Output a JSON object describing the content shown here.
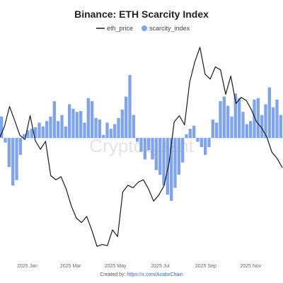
{
  "colors": {
    "price": "#1a1a1a",
    "scarcity": "#7ea3f0",
    "grid": "#eeeeee",
    "credit_link": "#3366cc"
  },
  "chart_data": {
    "type": "line",
    "title": "Binance: ETH Scarcity Index",
    "legend": {
      "placement": "top-center",
      "price_label": "eth_price",
      "scarcity_label": "scarcity_index"
    },
    "watermark": "CryptoQuant",
    "credit": {
      "prefix": "Created by: ",
      "link": "https://x.com/AzabxChain"
    },
    "x_ticks": [
      "2025 Jan",
      "2025 Mar",
      "2025 May",
      "2025 Jul",
      "2025 Sep",
      "2025 Nov"
    ],
    "x_range": [
      "2024-11-25",
      "2025-12-15"
    ],
    "grid": false,
    "series": [
      {
        "name": "eth_price",
        "kind": "line",
        "yrange": [
          1400,
          4900
        ],
        "x": [
          "2024-11-25",
          "2024-12-01",
          "2024-12-08",
          "2024-12-15",
          "2024-12-22",
          "2024-12-29",
          "2025-01-05",
          "2025-01-12",
          "2025-01-19",
          "2025-01-26",
          "2025-02-02",
          "2025-02-09",
          "2025-02-16",
          "2025-02-23",
          "2025-03-02",
          "2025-03-09",
          "2025-03-16",
          "2025-03-23",
          "2025-03-30",
          "2025-04-06",
          "2025-04-13",
          "2025-04-20",
          "2025-04-27",
          "2025-05-04",
          "2025-05-11",
          "2025-05-18",
          "2025-05-25",
          "2025-06-01",
          "2025-06-08",
          "2025-06-15",
          "2025-06-22",
          "2025-06-29",
          "2025-07-06",
          "2025-07-13",
          "2025-07-20",
          "2025-07-27",
          "2025-08-03",
          "2025-08-10",
          "2025-08-17",
          "2025-08-24",
          "2025-08-31",
          "2025-09-07",
          "2025-09-14",
          "2025-09-21",
          "2025-09-28",
          "2025-10-05",
          "2025-10-12",
          "2025-10-19",
          "2025-10-26",
          "2025-11-02",
          "2025-11-09",
          "2025-11-16",
          "2025-11-23",
          "2025-11-30",
          "2025-12-07",
          "2025-12-14"
        ],
        "values": [
          3350,
          3520,
          3850,
          3620,
          3380,
          3310,
          3700,
          3290,
          3150,
          3280,
          2720,
          2650,
          2700,
          2500,
          2220,
          2020,
          1950,
          2050,
          1820,
          1560,
          1590,
          1570,
          1830,
          1720,
          2450,
          2560,
          2520,
          2610,
          2650,
          2500,
          2300,
          2400,
          2550,
          2930,
          3600,
          3700,
          3550,
          4250,
          4580,
          4820,
          4380,
          4300,
          4500,
          4450,
          4050,
          4350,
          3900,
          4000,
          3950,
          3800,
          3600,
          3500,
          3350,
          3100,
          3000,
          2850
        ]
      },
      {
        "name": "scarcity_index",
        "kind": "bar",
        "yrange": [
          -1.2,
          1.2
        ],
        "values": [
          0.28,
          -0.06,
          -0.38,
          -0.62,
          -0.55,
          -0.22,
          0.05,
          0.1,
          0.12,
          0.14,
          0.2,
          0.15,
          0.22,
          0.28,
          0.48,
          0.22,
          0.3,
          0.15,
          0.44,
          0.38,
          0.34,
          0.35,
          0.2,
          0.52,
          0.48,
          0.26,
          0.24,
          0.04,
          0.2,
          0.12,
          0.18,
          0.26,
          0.37,
          0.54,
          0.82,
          0.3,
          -0.05,
          -0.18,
          -0.28,
          -0.16,
          -0.28,
          -0.42,
          -0.48,
          -0.62,
          -0.74,
          -0.82,
          -0.65,
          -0.48,
          -0.32,
          0.05,
          0.12,
          0.16,
          -0.05,
          -0.12,
          -0.22,
          -0.12,
          0.24,
          0.2,
          0.48,
          0.54,
          0.42,
          0.28,
          0.58,
          0.52,
          0.34,
          0.18,
          0.22,
          0.5,
          0.52,
          0.3,
          0.44,
          0.66,
          0.4,
          0.5,
          0.3
        ]
      }
    ]
  }
}
